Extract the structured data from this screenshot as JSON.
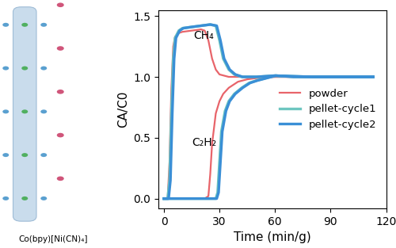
{
  "chart_data": {
    "type": "line",
    "x_label": "Time (min/g)",
    "y_label": "CA/C0",
    "xlim": [
      -3,
      120
    ],
    "xticks": [
      0,
      30,
      60,
      90,
      120
    ],
    "ylim": [
      -0.08,
      1.55
    ],
    "yticks": [
      0.0,
      0.5,
      1.0,
      1.5
    ],
    "grid": false,
    "legend": "center right",
    "annotations": [
      "CH₄",
      "C₂H₂"
    ],
    "structure_label": "Co(bpy)[Ni(CN)₄]",
    "series": [
      {
        "name": "powder",
        "color": "#e8646a",
        "curves": {
          "CH₄": {
            "x": [
              0,
              2,
              3,
              4,
              5,
              6,
              8,
              10,
              15,
              20,
              22,
              24,
              26,
              28,
              30,
              35,
              40,
              50,
              60,
              80,
              100
            ],
            "values": [
              0,
              0,
              0.3,
              0.9,
              1.25,
              1.33,
              1.36,
              1.37,
              1.38,
              1.39,
              1.38,
              1.3,
              1.15,
              1.06,
              1.02,
              1.0,
              1.0,
              1.0,
              1.0,
              1.0,
              1.0
            ]
          },
          "C₂H₂": {
            "x": [
              0,
              22,
              24,
              25,
              26,
              28,
              30,
              32,
              35,
              40,
              45,
              50,
              60,
              80,
              100
            ],
            "values": [
              0,
              0,
              0.02,
              0.2,
              0.45,
              0.7,
              0.8,
              0.86,
              0.91,
              0.96,
              0.98,
              0.99,
              1.0,
              1.0,
              1.0
            ]
          }
        }
      },
      {
        "name": "pellet-cycle1",
        "color": "#6ec6c0",
        "curves": {
          "CH₄": {
            "x": [
              0,
              2,
              3,
              4,
              5,
              6,
              8,
              10,
              15,
              20,
              25,
              28,
              30,
              32,
              35,
              38,
              42,
              50,
              60,
              80,
              113
            ],
            "values": [
              0,
              0,
              0.15,
              0.7,
              1.15,
              1.32,
              1.38,
              1.4,
              1.41,
              1.42,
              1.43,
              1.42,
              1.3,
              1.15,
              1.06,
              1.02,
              1.0,
              1.0,
              1.01,
              1.0,
              1.0
            ]
          },
          "C₂H₂": {
            "x": [
              0,
              28,
              29,
              30,
              31,
              33,
              35,
              38,
              42,
              46,
              50,
              55,
              60,
              70,
              90,
              113
            ],
            "values": [
              0,
              0,
              0.05,
              0.3,
              0.55,
              0.72,
              0.8,
              0.86,
              0.91,
              0.95,
              0.97,
              0.99,
              1.01,
              1.0,
              1.0,
              1.0
            ]
          }
        }
      },
      {
        "name": "pellet-cycle2",
        "color": "#3a8fd6",
        "curves": {
          "CH₄": {
            "x": [
              0,
              2.5,
              3.5,
              4.5,
              5.5,
              6.5,
              8.5,
              10.5,
              15,
              20,
              25,
              28.5,
              30.5,
              32.5,
              35.5,
              38.5,
              42.5,
              50,
              60,
              80,
              113
            ],
            "values": [
              0,
              0,
              0.15,
              0.7,
              1.15,
              1.32,
              1.38,
              1.4,
              1.41,
              1.42,
              1.43,
              1.42,
              1.3,
              1.15,
              1.06,
              1.02,
              1.0,
              1.0,
              1.01,
              1.0,
              1.0
            ]
          },
          "C₂H₂": {
            "x": [
              0,
              28.5,
              29.5,
              30.5,
              31.5,
              33.5,
              35.5,
              38.5,
              42.5,
              46.5,
              50.5,
              55.5,
              60.5,
              70,
              90,
              113
            ],
            "values": [
              0,
              0,
              0.05,
              0.3,
              0.55,
              0.72,
              0.8,
              0.86,
              0.91,
              0.95,
              0.97,
              0.99,
              1.01,
              1.0,
              1.0,
              1.0
            ]
          }
        }
      }
    ]
  }
}
